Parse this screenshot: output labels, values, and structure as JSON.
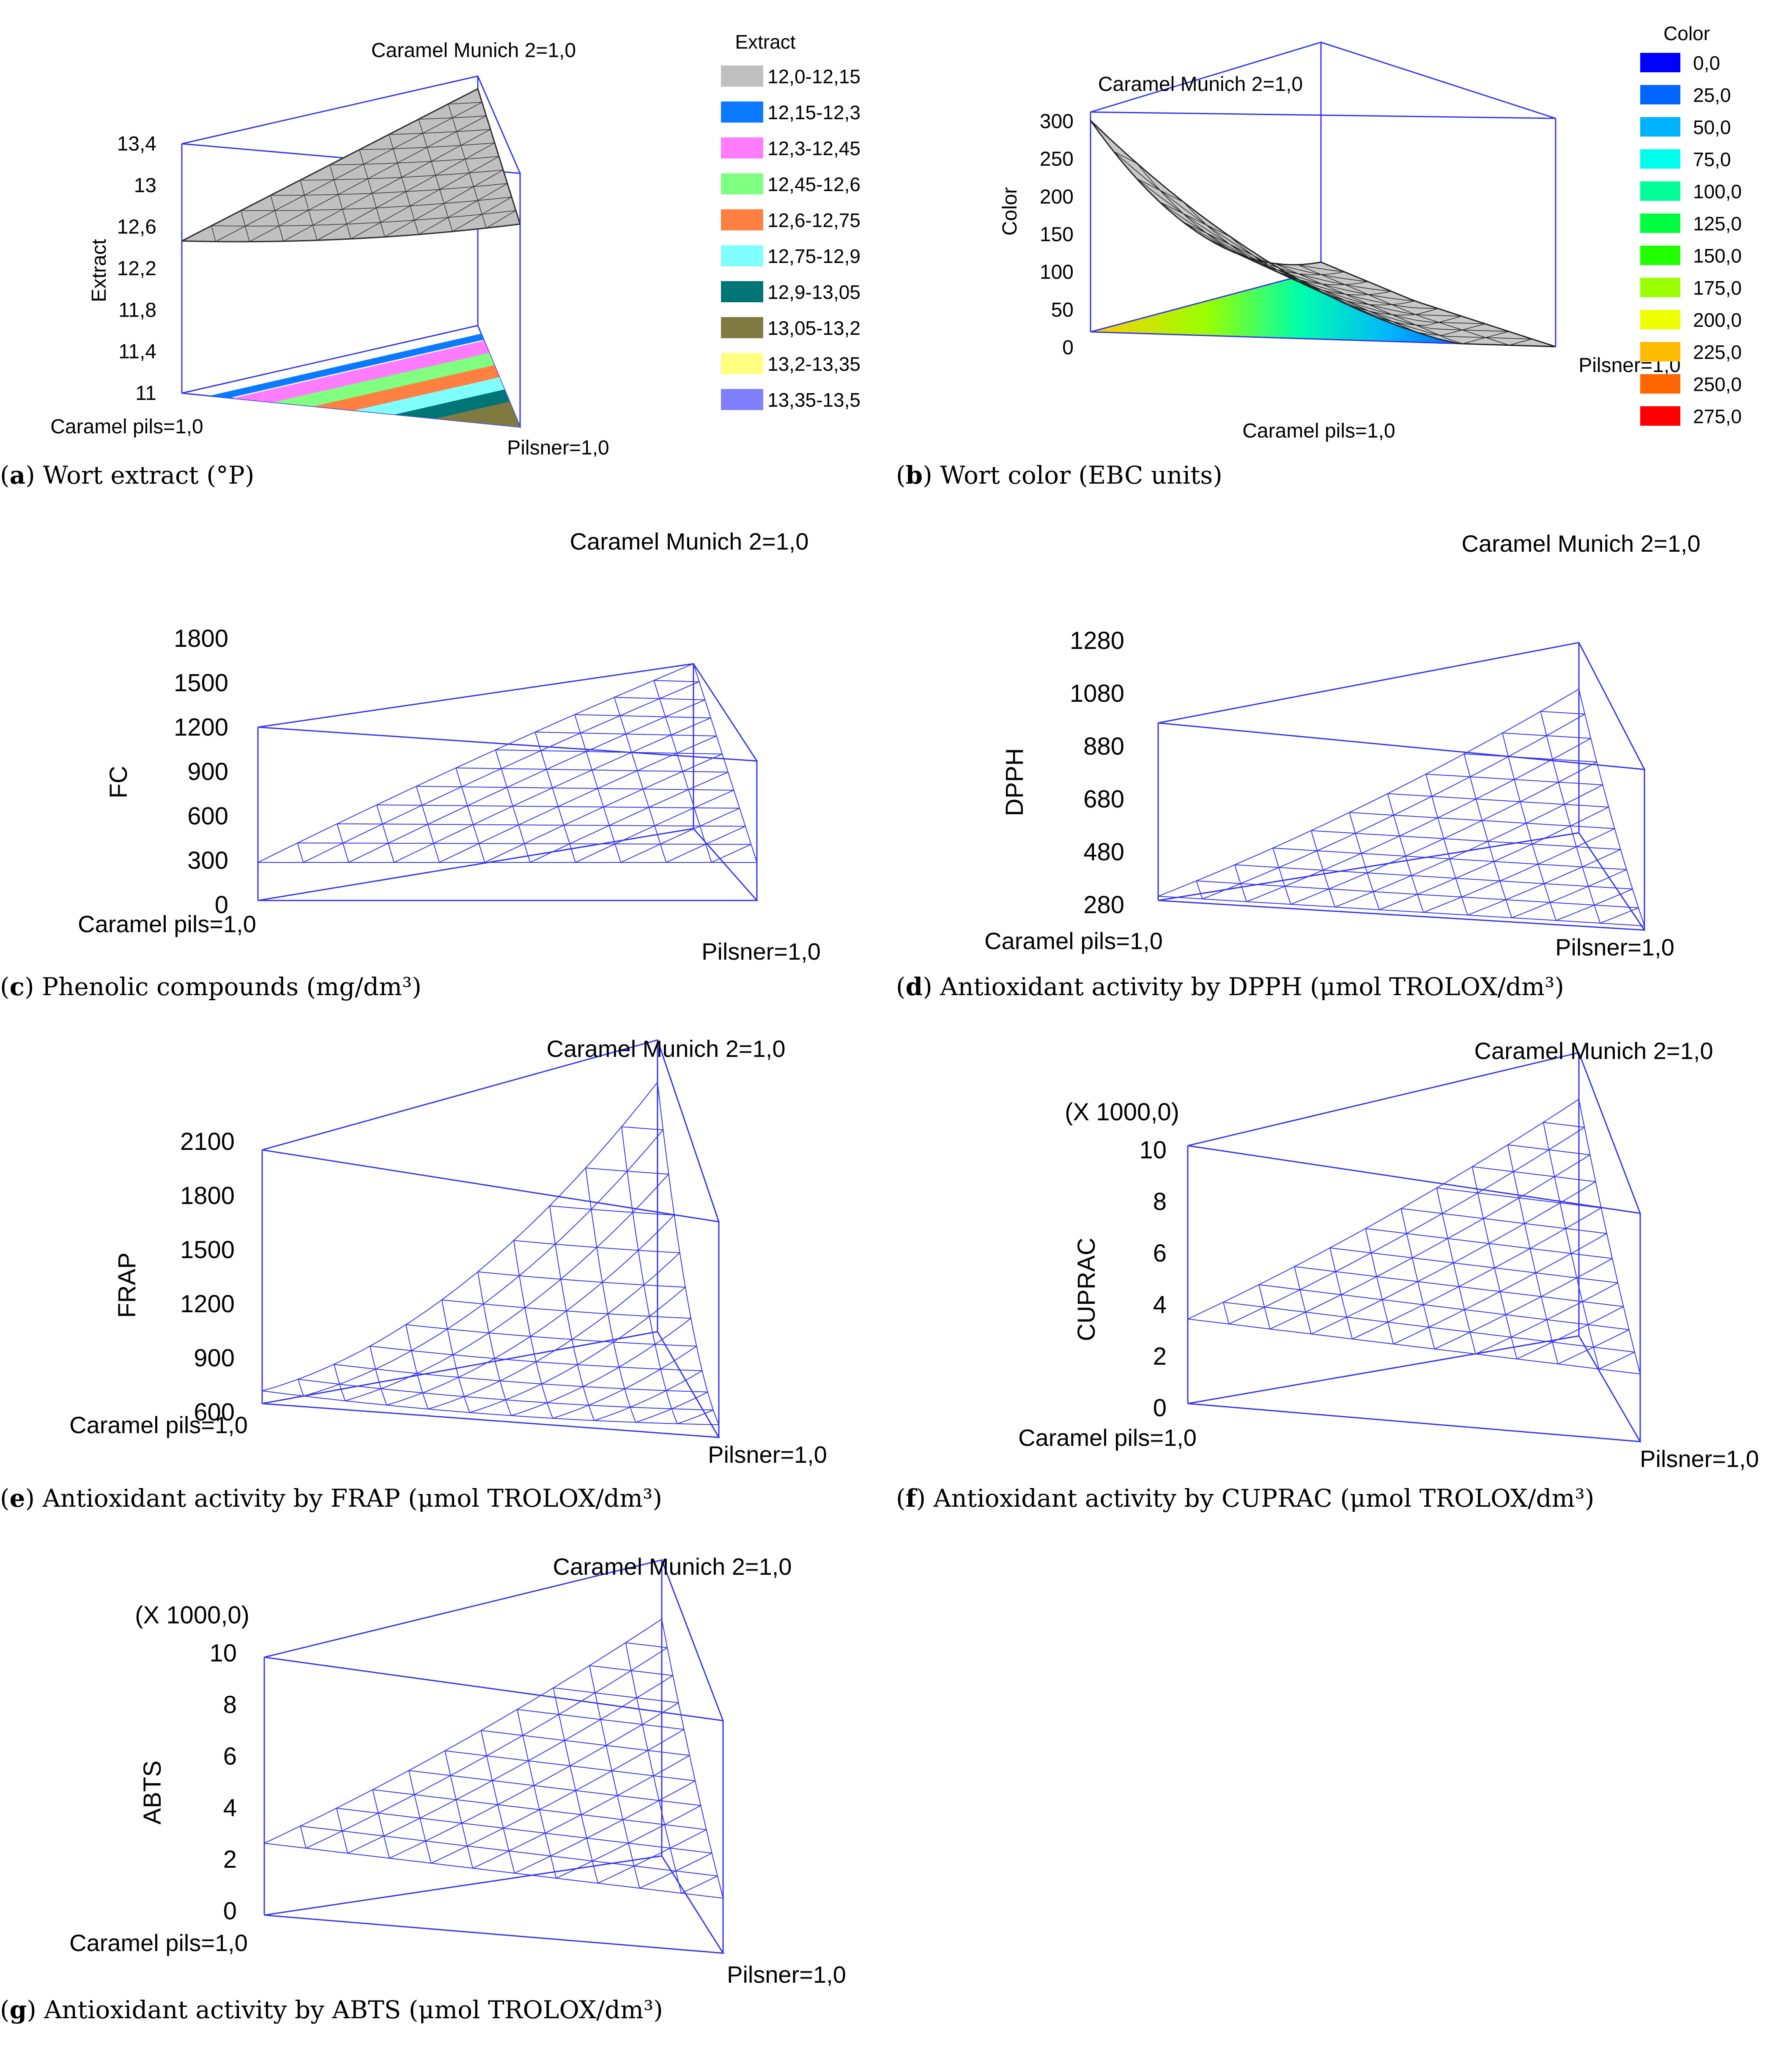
{
  "panels": [
    {
      "key": "a",
      "caption_label": "a",
      "caption_text": "Wort extract (°P)",
      "chart_data": {
        "type": "surface",
        "zlabel": "Extract",
        "zticks": [
          "11",
          "11,4",
          "11,8",
          "12,2",
          "12,6",
          "13",
          "13,4"
        ],
        "corners": {
          "top": "Caramel Munich 2=1,0",
          "left": "Caramel pils=1,0",
          "right": "Pilsner=1,0"
        },
        "legend_title": "Extract",
        "legend": [
          {
            "label": "12,0-12,15",
            "color": "#c0c0c0"
          },
          {
            "label": "12,15-12,3",
            "color": "#0a7bff"
          },
          {
            "label": "12,3-12,45",
            "color": "#ff7cff"
          },
          {
            "label": "12,45-12,6",
            "color": "#80ff80"
          },
          {
            "label": "12,6-12,75",
            "color": "#ff8040"
          },
          {
            "label": "12,75-12,9",
            "color": "#80ffff"
          },
          {
            "label": "12,9-13,05",
            "color": "#007575"
          },
          {
            "label": "13,05-13,2",
            "color": "#807a40"
          },
          {
            "label": "13,2-13,35",
            "color": "#ffff80"
          },
          {
            "label": "13,35-13,5",
            "color": "#8080ff"
          }
        ]
      }
    },
    {
      "key": "b",
      "caption_label": "b",
      "caption_text": "Wort color (EBC units)",
      "chart_data": {
        "type": "surface",
        "zlabel": "Color",
        "zticks": [
          "0",
          "50",
          "100",
          "150",
          "200",
          "250",
          "300"
        ],
        "corners": {
          "top": "Caramel Munich 2=1,0",
          "left": "Caramel pils=1,0",
          "right": "Pilsner=1,0"
        },
        "legend_title": "Color",
        "legend": [
          {
            "label": "0,0",
            "color": "#0000ff"
          },
          {
            "label": "25,0",
            "color": "#0066ff"
          },
          {
            "label": "50,0",
            "color": "#00b3ff"
          },
          {
            "label": "75,0",
            "color": "#00ffee"
          },
          {
            "label": "100,0",
            "color": "#00ff99"
          },
          {
            "label": "125,0",
            "color": "#00ff40"
          },
          {
            "label": "150,0",
            "color": "#22ff00"
          },
          {
            "label": "175,0",
            "color": "#99ff00"
          },
          {
            "label": "200,0",
            "color": "#eeff00"
          },
          {
            "label": "225,0",
            "color": "#ffbb00"
          },
          {
            "label": "250,0",
            "color": "#ff6600"
          },
          {
            "label": "275,0",
            "color": "#ff0000"
          }
        ]
      }
    },
    {
      "key": "c",
      "caption_label": "c",
      "caption_text": "Phenolic compounds (mg/dm³)",
      "chart_data": {
        "type": "surface",
        "zlabel": "FC",
        "zticks": [
          "0",
          "300",
          "600",
          "900",
          "1200",
          "1500",
          "1800"
        ],
        "corners": {
          "top": "Caramel Munich 2=1,0",
          "left": "Caramel pils=1,0",
          "right": "Pilsner=1,0"
        }
      }
    },
    {
      "key": "d",
      "caption_label": "d",
      "caption_text": "Antioxidant activity by DPPH (μmol TROLOX/dm³)",
      "chart_data": {
        "type": "surface",
        "zlabel": "DPPH",
        "zticks": [
          "280",
          "480",
          "680",
          "880",
          "1080",
          "1280"
        ],
        "corners": {
          "top": "Caramel Munich 2=1,0",
          "left": "Caramel pils=1,0",
          "right": "Pilsner=1,0"
        }
      }
    },
    {
      "key": "e",
      "caption_label": "e",
      "caption_text": "Antioxidant activity by FRAP (μmol TROLOX/dm³)",
      "chart_data": {
        "type": "surface",
        "zlabel": "FRAP",
        "zticks": [
          "600",
          "900",
          "1200",
          "1500",
          "1800",
          "2100"
        ],
        "corners": {
          "top": "Caramel Munich 2=1,0",
          "left": "Caramel pils=1,0",
          "right": "Pilsner=1,0"
        }
      }
    },
    {
      "key": "f",
      "caption_label": "f",
      "caption_text": "Antioxidant activity by CUPRAC (μmol TROLOX/dm³)",
      "chart_data": {
        "type": "surface",
        "zlabel": "CUPRAC",
        "zscale": "(X 1000,0)",
        "zticks": [
          "0",
          "2",
          "4",
          "6",
          "8",
          "10"
        ],
        "corners": {
          "top": "Caramel Munich 2=1,0",
          "left": "Caramel pils=1,0",
          "right": "Pilsner=1,0"
        }
      }
    },
    {
      "key": "g",
      "caption_label": "g",
      "caption_text": "Antioxidant activity by ABTS (μmol TROLOX/dm³)",
      "chart_data": {
        "type": "surface",
        "zlabel": "ABTS",
        "zscale": "(X 1000,0)",
        "zticks": [
          "0",
          "2",
          "4",
          "6",
          "8",
          "10"
        ],
        "corners": {
          "top": "Caramel Munich 2=1,0",
          "left": "Caramel pils=1,0",
          "right": "Pilsner=1,0"
        }
      }
    }
  ]
}
